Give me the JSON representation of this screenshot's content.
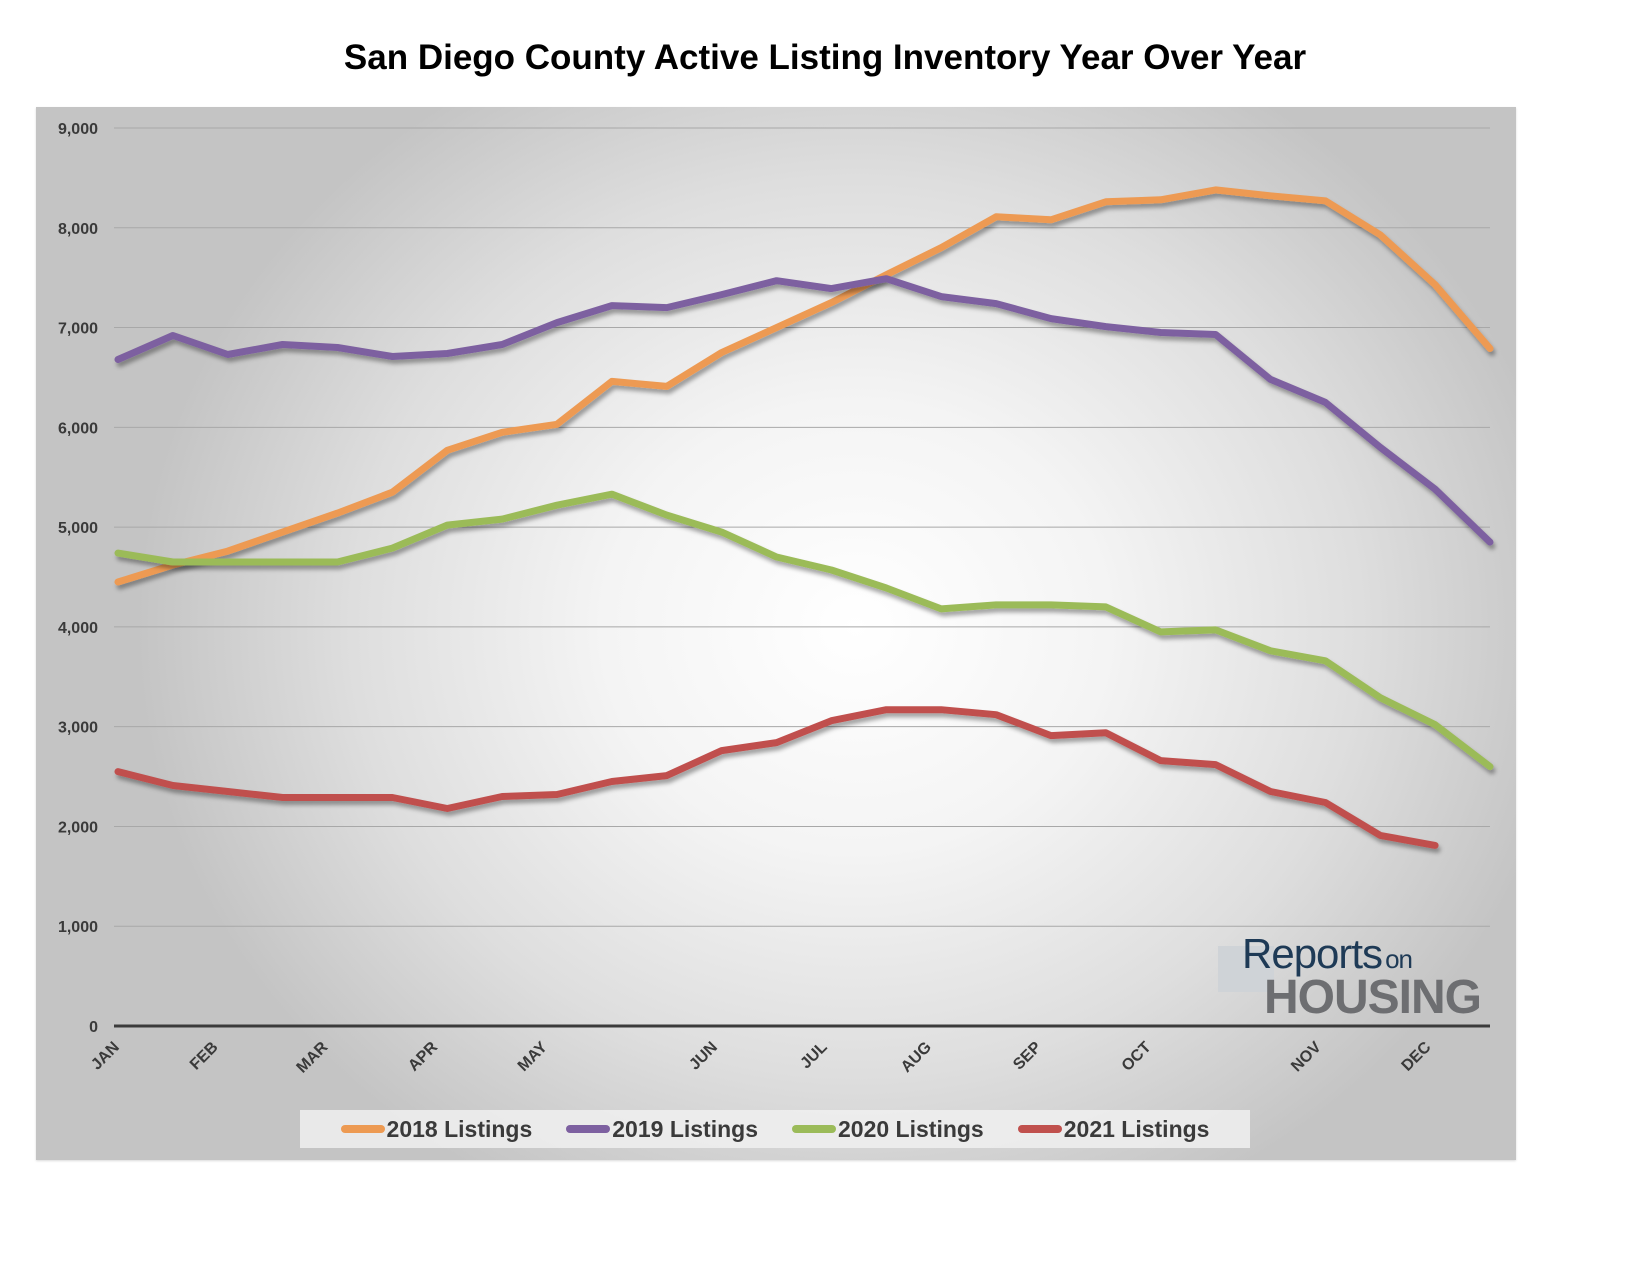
{
  "chart_data": {
    "type": "line",
    "title": "San Diego County Active Listing Inventory Year Over Year",
    "xlabel": "",
    "ylabel": "",
    "ylim": [
      0,
      9000
    ],
    "yticks": [
      0,
      1000,
      2000,
      3000,
      4000,
      5000,
      6000,
      7000,
      8000,
      9000
    ],
    "ytick_labels": [
      "0",
      "1,000",
      "2,000",
      "3,000",
      "4,000",
      "5,000",
      "6,000",
      "7,000",
      "8,000",
      "9,000"
    ],
    "grid": true,
    "legend_position": "bottom",
    "num_points": 26,
    "month_ticks": [
      {
        "label": "JAN",
        "index": 0
      },
      {
        "label": "FEB",
        "index": 1.8
      },
      {
        "label": "MAR",
        "index": 3.8
      },
      {
        "label": "APR",
        "index": 5.8
      },
      {
        "label": "MAY",
        "index": 7.8
      },
      {
        "label": "JUN",
        "index": 10.9
      },
      {
        "label": "JUL",
        "index": 12.9
      },
      {
        "label": "AUG",
        "index": 14.8
      },
      {
        "label": "SEP",
        "index": 16.8
      },
      {
        "label": "OCT",
        "index": 18.8
      },
      {
        "label": "NOV",
        "index": 21.9
      },
      {
        "label": "DEC",
        "index": 23.9
      }
    ],
    "series": [
      {
        "name": "2018 Listings",
        "color": "#ED9A52",
        "values": [
          4450,
          4620,
          4760,
          4950,
          5140,
          5350,
          5770,
          5950,
          6030,
          6460,
          6410,
          6750,
          7000,
          7250,
          7530,
          7800,
          8110,
          8080,
          8260,
          8280,
          8380,
          8320,
          8270,
          7930,
          7430,
          6790
        ]
      },
      {
        "name": "2019 Listings",
        "color": "#7D60A0",
        "values": [
          6680,
          6920,
          6730,
          6830,
          6800,
          6710,
          6740,
          6830,
          7050,
          7220,
          7200,
          7330,
          7470,
          7390,
          7490,
          7310,
          7240,
          7090,
          7010,
          6950,
          6930,
          6480,
          6250,
          5800,
          5380,
          4850
        ]
      },
      {
        "name": "2020 Listings",
        "color": "#9BBB59",
        "values": [
          4740,
          4650,
          4650,
          4650,
          4650,
          4790,
          5020,
          5080,
          5220,
          5330,
          5120,
          4950,
          4700,
          4570,
          4390,
          4180,
          4220,
          4220,
          4200,
          3950,
          3970,
          3760,
          3660,
          3290,
          3020,
          2600
        ]
      },
      {
        "name": "2021 Listings",
        "color": "#C0504D",
        "values": [
          2550,
          2410,
          2350,
          2290,
          2290,
          2290,
          2180,
          2300,
          2320,
          2450,
          2510,
          2760,
          2840,
          3060,
          3170,
          3170,
          3120,
          2910,
          2940,
          2660,
          2620,
          2350,
          2240,
          1910,
          1810,
          null
        ]
      }
    ]
  },
  "logo": {
    "reports": "Reports",
    "on": "on",
    "housing": "HOUSING"
  }
}
